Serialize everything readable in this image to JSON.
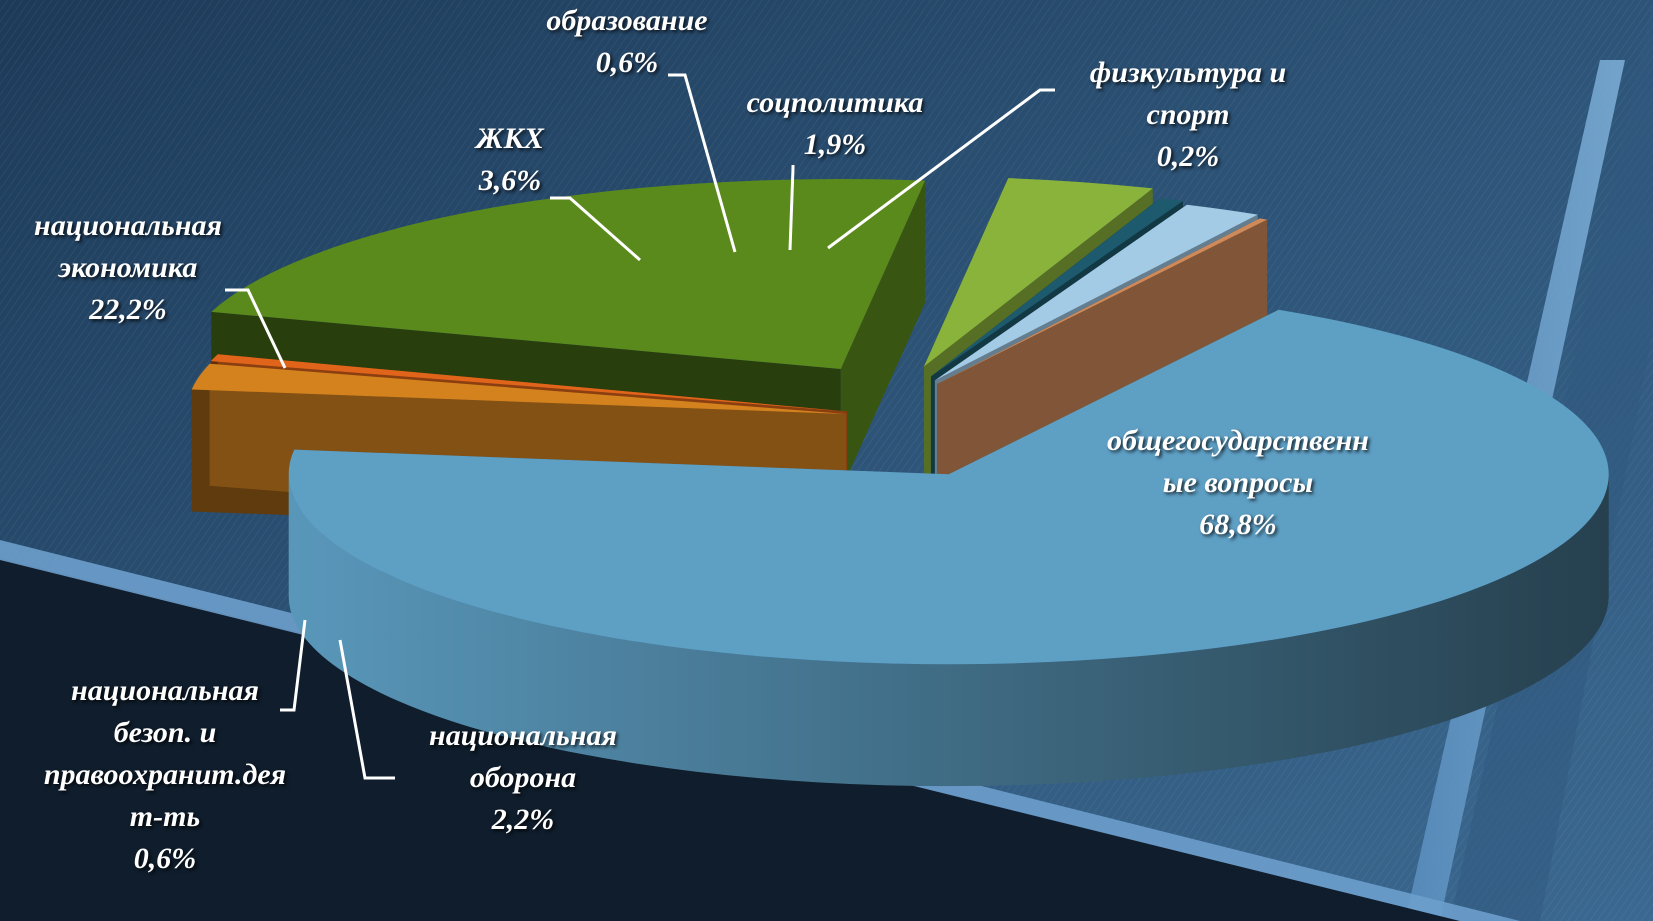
{
  "chart_data": {
    "type": "pie",
    "title": "",
    "slices": [
      {
        "label_lines": [
          "общегосударственн",
          "ые вопросы"
        ],
        "value_label": "68,8%",
        "value": 68.8,
        "color": "#5e9fc4"
      },
      {
        "label_lines": [
          "национальная",
          "оборона"
        ],
        "value_label": "2,2%",
        "value": 2.2,
        "color": "#d4821e"
      },
      {
        "label_lines": [
          "национальная",
          "безоп. и",
          "правоохранит.дея",
          "т-ть"
        ],
        "value_label": "0,6%",
        "value": 0.6,
        "color": "#e0651a"
      },
      {
        "label_lines": [
          "национальная",
          "экономика"
        ],
        "value_label": "22,2%",
        "value": 22.2,
        "color": "#5a8a1c"
      },
      {
        "label_lines": [
          "ЖКХ"
        ],
        "value_label": "3,6%",
        "value": 3.6,
        "color": "#8ab33c"
      },
      {
        "label_lines": [
          "образование"
        ],
        "value_label": "0,6%",
        "value": 0.6,
        "color": "#1d5a6e"
      },
      {
        "label_lines": [
          "соцполитика"
        ],
        "value_label": "1,9%",
        "value": 1.9,
        "color": "#a3cbe6"
      },
      {
        "label_lines": [
          "физкультура и",
          "спорт"
        ],
        "value_label": "0,2%",
        "value": 0.2,
        "color": "#d08a5a"
      }
    ],
    "legend": "none",
    "style": "3d-exploded"
  }
}
